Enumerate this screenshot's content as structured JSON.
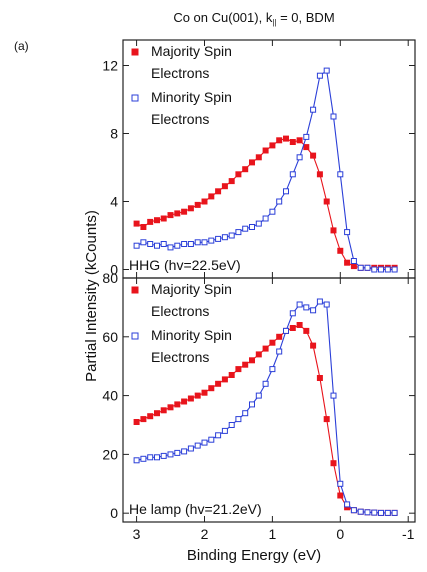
{
  "figure": {
    "title": "Co on Cu(001), k",
    "title_subscript": "||",
    "title_suffix": " = 0, BDM",
    "panel_label": "(a)",
    "ylabel": "Partial Intensity (kCounts)",
    "xlabel": "Binding Energy (eV)"
  },
  "colors": {
    "majority": "#e8141c",
    "minority": "#2b3fd8",
    "axis": "#222222"
  },
  "chart_data": [
    {
      "type": "line",
      "panel": "top",
      "annotation": "HHG (hv=22.5eV)",
      "xlabel": "Binding Energy (eV)",
      "ylabel": "Partial Intensity (kCounts)",
      "xlim": [
        3.2,
        -1.1
      ],
      "ylim": [
        -0.5,
        13.5
      ],
      "xticks": [
        3,
        2,
        1,
        0,
        -1
      ],
      "yticks": [
        0,
        4,
        8,
        12
      ],
      "legend_position": "top-left",
      "series": [
        {
          "name": "Majority Spin Electrons",
          "marker": "filled-square",
          "color": "#e8141c",
          "x": [
            3.0,
            2.9,
            2.8,
            2.7,
            2.6,
            2.5,
            2.4,
            2.3,
            2.2,
            2.1,
            2.0,
            1.9,
            1.8,
            1.7,
            1.6,
            1.5,
            1.4,
            1.3,
            1.2,
            1.1,
            1.0,
            0.9,
            0.8,
            0.7,
            0.6,
            0.5,
            0.4,
            0.3,
            0.2,
            0.1,
            0.0,
            -0.1,
            -0.2,
            -0.3,
            -0.4,
            -0.5,
            -0.6,
            -0.7,
            -0.8
          ],
          "y": [
            2.7,
            2.5,
            2.8,
            2.9,
            3.0,
            3.2,
            3.3,
            3.4,
            3.6,
            3.8,
            4.0,
            4.3,
            4.6,
            4.9,
            5.2,
            5.6,
            5.9,
            6.3,
            6.6,
            7.0,
            7.3,
            7.6,
            7.7,
            7.5,
            7.6,
            7.2,
            6.7,
            5.6,
            4.0,
            2.3,
            1.1,
            0.4,
            0.2,
            0.1,
            0.1,
            0.1,
            0.1,
            0.1,
            0.1
          ]
        },
        {
          "name": "Minority Spin Electrons",
          "marker": "open-square",
          "color": "#2b3fd8",
          "x": [
            3.0,
            2.9,
            2.8,
            2.7,
            2.6,
            2.5,
            2.4,
            2.3,
            2.2,
            2.1,
            2.0,
            1.9,
            1.8,
            1.7,
            1.6,
            1.5,
            1.4,
            1.3,
            1.2,
            1.1,
            1.0,
            0.9,
            0.8,
            0.7,
            0.6,
            0.5,
            0.4,
            0.3,
            0.2,
            0.1,
            0.0,
            -0.1,
            -0.2,
            -0.3,
            -0.4,
            -0.5,
            -0.6,
            -0.7,
            -0.8
          ],
          "y": [
            1.4,
            1.6,
            1.5,
            1.4,
            1.5,
            1.3,
            1.4,
            1.5,
            1.5,
            1.6,
            1.6,
            1.7,
            1.8,
            1.9,
            2.0,
            2.2,
            2.4,
            2.5,
            2.7,
            3.0,
            3.4,
            4.0,
            4.6,
            5.6,
            6.6,
            7.8,
            9.4,
            11.4,
            11.7,
            9.0,
            5.6,
            2.2,
            0.5,
            0.1,
            0.1,
            0.0,
            0.0,
            0.0,
            0.0
          ]
        }
      ]
    },
    {
      "type": "line",
      "panel": "bottom",
      "annotation": "He lamp (hv=21.2eV)",
      "xlabel": "Binding Energy (eV)",
      "ylabel": "Partial Intensity (kCounts)",
      "xlim": [
        3.2,
        -1.1
      ],
      "ylim": [
        -3,
        80
      ],
      "xticks": [
        3,
        2,
        1,
        0,
        -1
      ],
      "yticks": [
        0,
        20,
        40,
        60,
        80
      ],
      "legend_position": "top-left",
      "series": [
        {
          "name": "Majority Spin Electrons",
          "marker": "filled-square",
          "color": "#e8141c",
          "x": [
            3.0,
            2.9,
            2.8,
            2.7,
            2.6,
            2.5,
            2.4,
            2.3,
            2.2,
            2.1,
            2.0,
            1.9,
            1.8,
            1.7,
            1.6,
            1.5,
            1.4,
            1.3,
            1.2,
            1.1,
            1.0,
            0.9,
            0.8,
            0.7,
            0.6,
            0.5,
            0.4,
            0.3,
            0.2,
            0.1,
            0.0,
            -0.1,
            -0.2,
            -0.3,
            -0.4,
            -0.5,
            -0.6,
            -0.7,
            -0.8
          ],
          "y": [
            31,
            32,
            33,
            34,
            35,
            36,
            37,
            38,
            39,
            40,
            41,
            42.5,
            44,
            45.5,
            47,
            49,
            50.5,
            52,
            54,
            56,
            58,
            60,
            62,
            63,
            64,
            62,
            57,
            46,
            32,
            17,
            6,
            2,
            1,
            0.5,
            0.3,
            0.2,
            0.1,
            0.1,
            0.1
          ]
        },
        {
          "name": "Minority Spin Electrons",
          "marker": "open-square",
          "color": "#2b3fd8",
          "x": [
            3.0,
            2.9,
            2.8,
            2.7,
            2.6,
            2.5,
            2.4,
            2.3,
            2.2,
            2.1,
            2.0,
            1.9,
            1.8,
            1.7,
            1.6,
            1.5,
            1.4,
            1.3,
            1.2,
            1.1,
            1.0,
            0.9,
            0.8,
            0.7,
            0.6,
            0.5,
            0.4,
            0.3,
            0.2,
            0.1,
            0.0,
            -0.1,
            -0.2,
            -0.3,
            -0.4,
            -0.5,
            -0.6,
            -0.7,
            -0.8
          ],
          "y": [
            18,
            18.5,
            19,
            19,
            19.5,
            20,
            20.5,
            21,
            22,
            23,
            24,
            25,
            26.5,
            28,
            30,
            32,
            34,
            37,
            40,
            44,
            49,
            55,
            62,
            68,
            71,
            70,
            69,
            72,
            71,
            40,
            10,
            3,
            1,
            0.5,
            0.3,
            0.2,
            0.1,
            0.1,
            0.1
          ]
        }
      ]
    }
  ]
}
